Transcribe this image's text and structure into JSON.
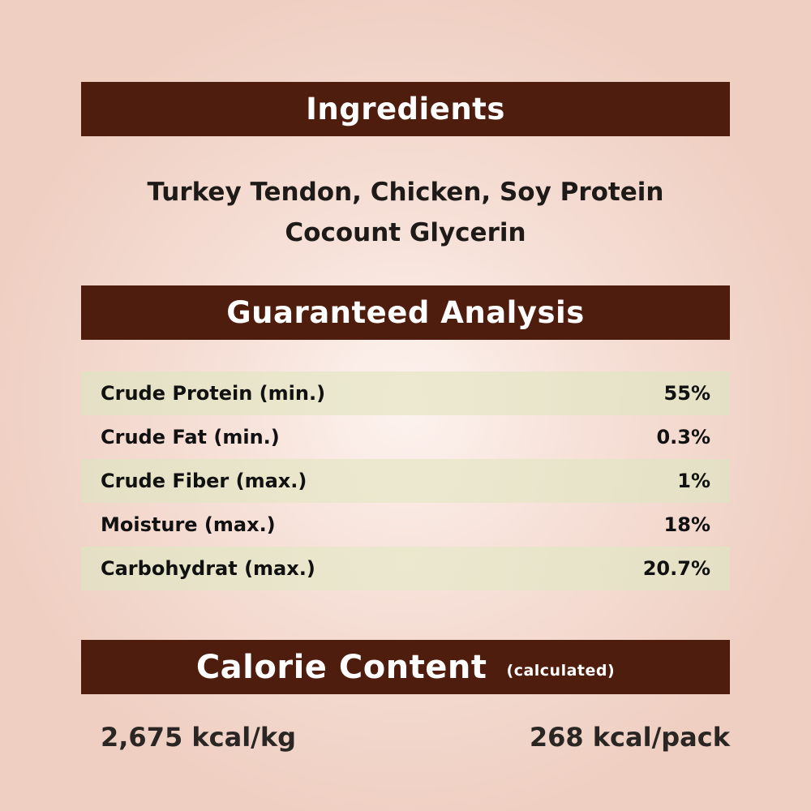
{
  "ingredients": {
    "title": "Ingredients",
    "lines": [
      "Turkey Tendon, Chicken, Soy Protein",
      "Cocount Glycerin"
    ]
  },
  "analysis": {
    "title": "Guaranteed Analysis",
    "rows": [
      {
        "label": "Crude Protein (min.)",
        "value": "55%"
      },
      {
        "label": "Crude Fat (min.)",
        "value": "0.3%"
      },
      {
        "label": "Crude Fiber (max.)",
        "value": "1%"
      },
      {
        "label": "Moisture (max.)",
        "value": "18%"
      },
      {
        "label": "Carbohydrat (max.)",
        "value": "20.7%"
      }
    ]
  },
  "calorie": {
    "title": "Calorie Content",
    "note": "(calculated)",
    "per_kg": "2,675 kcal/kg",
    "per_pack": "268 kcal/pack"
  },
  "colors": {
    "banner": "#4f1d0e",
    "background": "#efcfc2",
    "row_shade": "#e6e4c8"
  }
}
